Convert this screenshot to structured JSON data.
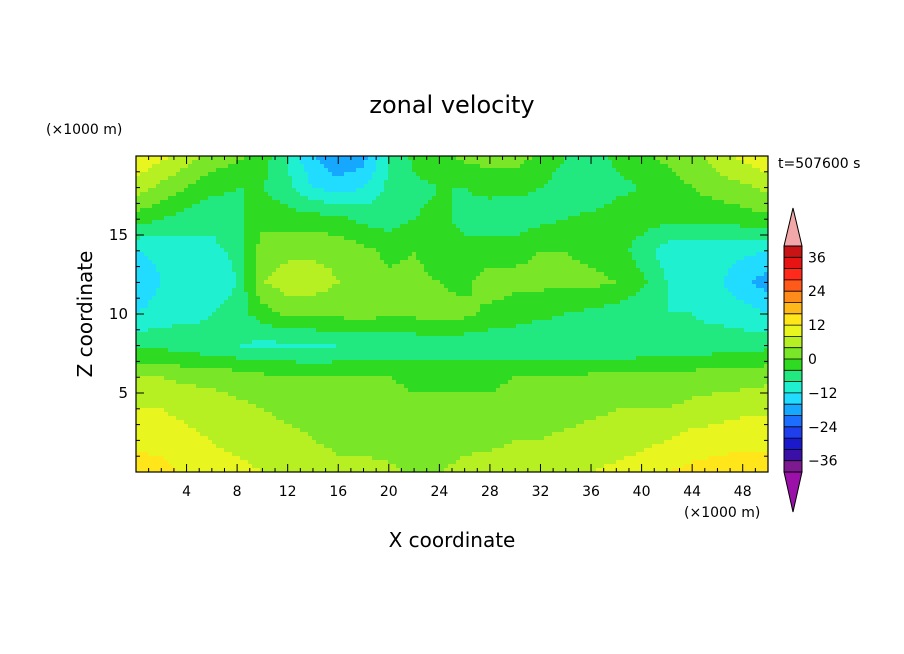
{
  "chart_data": {
    "type": "heatmap",
    "title": "zonal velocity",
    "time_label": "t=507600 s",
    "xlabel": "X coordinate",
    "ylabel": "Z coordinate",
    "x_units": "(×1000 m)",
    "y_units": "(×1000 m)",
    "xlim": [
      0,
      50
    ],
    "ylim": [
      0,
      20
    ],
    "x_ticks": [
      4,
      8,
      12,
      16,
      20,
      24,
      28,
      32,
      36,
      40,
      44,
      48
    ],
    "y_ticks": [
      5,
      10,
      15
    ],
    "colorbar": {
      "min": -40,
      "max": 40,
      "step": 4,
      "ticks": [
        36,
        24,
        12,
        0,
        -12,
        -24,
        -36
      ],
      "colors": [
        "#7d1a91",
        "#3a10a6",
        "#1a1acc",
        "#1f3fee",
        "#1c6eff",
        "#16a8ff",
        "#22dcff",
        "#1ff0d0",
        "#22e880",
        "#2fdb22",
        "#7ae628",
        "#b6f022",
        "#e8f51e",
        "#ffe61a",
        "#ffb81a",
        "#ff8c1a",
        "#ff5a1a",
        "#ff2a1a",
        "#e81414",
        "#c81414"
      ],
      "over_color": "#f2a8a8",
      "under_color": "#9a10a8"
    },
    "field": {
      "nx": 26,
      "nz": 11,
      "values": [
        [
          14,
          14,
          11,
          9,
          9,
          8,
          8,
          7,
          5,
          5,
          5,
          3,
          4,
          5,
          6,
          6,
          6,
          7,
          8,
          9,
          10,
          12,
          13,
          14,
          14,
          14
        ],
        [
          11,
          10,
          9,
          8,
          7,
          6,
          5,
          4,
          3,
          3,
          2,
          2,
          2,
          3,
          3,
          4,
          4,
          5,
          6,
          6,
          7,
          8,
          10,
          10,
          11,
          11
        ],
        [
          8,
          8,
          7,
          6,
          5,
          4,
          3,
          3,
          2,
          2,
          2,
          1,
          1,
          1,
          1,
          2,
          2,
          2,
          3,
          4,
          4,
          4,
          5,
          6,
          7,
          7
        ],
        [
          4,
          4,
          3,
          3,
          2,
          1,
          1,
          0,
          0,
          0,
          0,
          -1,
          -1,
          -1,
          -1,
          0,
          0,
          0,
          1,
          1,
          1,
          1,
          2,
          2,
          2,
          3
        ],
        [
          -5,
          -5,
          -6,
          -7,
          -8,
          -9,
          -9,
          -9,
          -8,
          -8,
          -7,
          -7,
          -6,
          -7,
          -7,
          -7,
          -8,
          -8,
          -8,
          -8,
          -7,
          -7,
          -7,
          -6,
          -6,
          -5
        ],
        [
          -12,
          -10,
          -9,
          -8,
          -6,
          -2,
          1,
          1,
          1,
          2,
          0,
          1,
          1,
          1,
          -1,
          -2,
          -3,
          -4,
          -5,
          -6,
          -7,
          -8,
          -8,
          -9,
          -10,
          -12
        ],
        [
          -16,
          -12,
          -11,
          -11,
          -8,
          4,
          6,
          6,
          4,
          2,
          1,
          1,
          0,
          -1,
          2,
          1,
          1,
          1,
          1,
          0,
          -3,
          -8,
          -10,
          -11,
          -15,
          -18
        ],
        [
          -12,
          -11,
          -10,
          -9,
          -7,
          2,
          3,
          3,
          3,
          1,
          -1,
          0,
          -2,
          -3,
          -2,
          -1,
          0,
          0,
          -1,
          -2,
          -6,
          -10,
          -11,
          -10,
          -11,
          -12
        ],
        [
          -2,
          -4,
          -6,
          -7,
          -5,
          -1,
          -2,
          -2,
          -3,
          -5,
          -6,
          -4,
          -3,
          -5,
          -6,
          -7,
          -5,
          -4,
          -3,
          -2,
          -2,
          -3,
          -3,
          -3,
          -2,
          -1
        ],
        [
          6,
          3,
          0,
          -3,
          -4,
          -4,
          -7,
          -12,
          -14,
          -12,
          -7,
          -5,
          -4,
          -4,
          -3,
          -3,
          -4,
          -6,
          -7,
          -5,
          -4,
          -2,
          0,
          2,
          3,
          5
        ],
        [
          12,
          9,
          6,
          3,
          1,
          -2,
          -8,
          -16,
          -20,
          -18,
          -8,
          -3,
          -1,
          1,
          2,
          2,
          -1,
          -4,
          -6,
          -3,
          -1,
          1,
          3,
          6,
          9,
          12
        ]
      ]
    }
  }
}
